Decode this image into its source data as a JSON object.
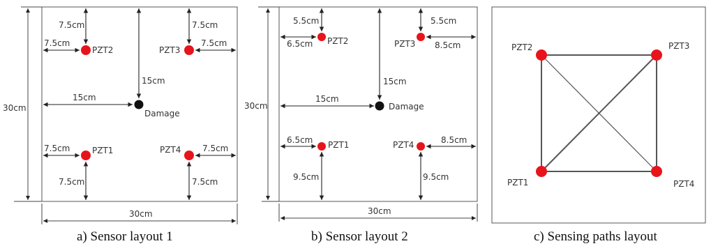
{
  "colors": {
    "sensor": "#e8141b",
    "damage": "#111111",
    "path": "#555555"
  },
  "panels": [
    {
      "id": "a",
      "caption": "a) Sensor layout 1",
      "width_label": "30cm",
      "height_label": "30cm",
      "sensors": [
        {
          "label": "PZT2",
          "label_side": "right",
          "h_dim": "7.5cm",
          "v_dim": "7.5cm"
        },
        {
          "label": "PZT3",
          "label_side": "left",
          "h_dim": "7.5cm",
          "v_dim": "7.5cm"
        },
        {
          "label": "PZT1",
          "label_side": "right",
          "h_dim": "7.5cm",
          "v_dim": "7.5cm"
        },
        {
          "label": "PZT4",
          "label_side": "left",
          "h_dim": "7.5cm",
          "v_dim": "7.5cm"
        }
      ],
      "damage": {
        "label": "Damage",
        "h_dim": "15cm",
        "v_dim": "15cm"
      }
    },
    {
      "id": "b",
      "caption": "b) Sensor layout 2",
      "width_label": "30cm",
      "height_label": "30cm",
      "sensors": [
        {
          "label": "PZT2",
          "label_side": "right",
          "h_dim": "6.5cm",
          "v_dim": "5.5cm"
        },
        {
          "label": "PZT3",
          "label_side": "left",
          "h_dim": "8.5cm",
          "v_dim": "5.5cm"
        },
        {
          "label": "PZT1",
          "label_side": "right",
          "h_dim": "6.5cm",
          "v_dim": "9.5cm"
        },
        {
          "label": "PZT4",
          "label_side": "left",
          "h_dim": "8.5cm",
          "v_dim": "9.5cm"
        }
      ],
      "damage": {
        "label": "Damage",
        "h_dim": "15cm",
        "v_dim": "15cm"
      }
    },
    {
      "id": "c",
      "caption": "c) Sensing paths layout",
      "nodes": [
        "PZT2",
        "PZT3",
        "PZT1",
        "PZT4"
      ]
    }
  ]
}
